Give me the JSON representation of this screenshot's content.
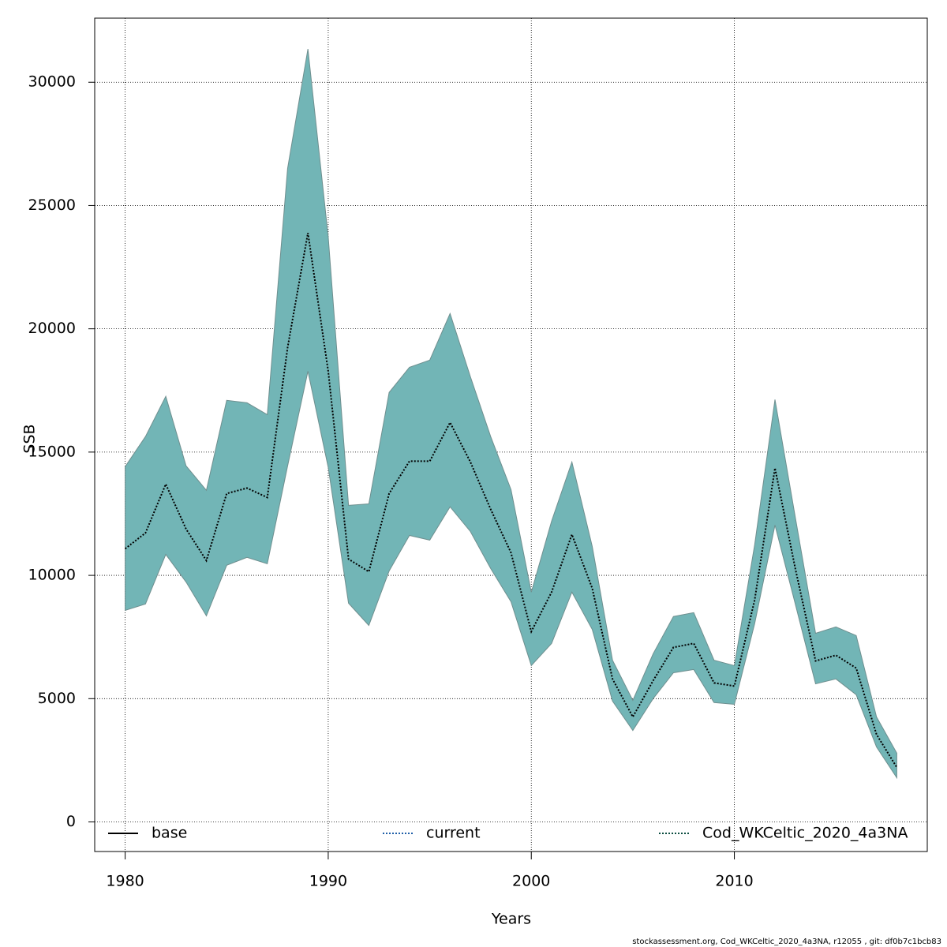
{
  "chart_data": {
    "type": "band-line",
    "xlabel": "Years",
    "ylabel": "SSB",
    "footnote": "stockassessment.org, Cod_WKCeltic_2020_4a3NA, r12055 , git: df0b7c1bcb83",
    "x": [
      1980,
      1981,
      1982,
      1983,
      1984,
      1985,
      1986,
      1987,
      1988,
      1989,
      1990,
      1991,
      1992,
      1993,
      1994,
      1995,
      1996,
      1997,
      1998,
      1999,
      2000,
      2001,
      2002,
      2003,
      2004,
      2005,
      2006,
      2007,
      2008,
      2009,
      2010,
      2011,
      2012,
      2013,
      2014,
      2015,
      2016,
      2017,
      2018
    ],
    "series": [
      {
        "name": "Cod_WKCeltic_2020_4a3NA",
        "color": "#000000",
        "band_color": "#72b5b6",
        "values": [
          11080,
          11720,
          13700,
          11880,
          10600,
          13320,
          13540,
          13160,
          19240,
          23890,
          18280,
          10660,
          10150,
          13320,
          14630,
          14630,
          16200,
          14600,
          12680,
          10920,
          7720,
          9320,
          11660,
          9480,
          5800,
          4260,
          5730,
          7080,
          7240,
          5640,
          5510,
          9000,
          14350,
          10280,
          6530,
          6760,
          6240,
          3550,
          2210
        ],
        "upper": [
          14410,
          15630,
          17260,
          14440,
          13450,
          17100,
          17000,
          16520,
          26510,
          31350,
          23730,
          12840,
          12900,
          17420,
          18440,
          18730,
          20620,
          18060,
          15630,
          13480,
          9320,
          12200,
          14600,
          11180,
          6560,
          4930,
          6820,
          8330,
          8490,
          6560,
          6340,
          11240,
          17130,
          12360,
          7650,
          7910,
          7560,
          4260,
          2790
        ],
        "lower": [
          8580,
          8840,
          10850,
          9730,
          8360,
          10410,
          10730,
          10470,
          14440,
          18280,
          14380,
          8870,
          7970,
          10180,
          11620,
          11430,
          12780,
          11780,
          10280,
          8930,
          6340,
          7240,
          9320,
          7810,
          4900,
          3710,
          5000,
          6050,
          6180,
          4840,
          4770,
          8040,
          12040,
          8840,
          5600,
          5800,
          5160,
          3040,
          1790
        ]
      }
    ],
    "legend": [
      {
        "name": "base",
        "color": "#000000",
        "dash": "solid"
      },
      {
        "name": "current",
        "color": "#1f5fa8",
        "dash": "dotted"
      },
      {
        "name": "Cod_WKCeltic_2020_4a3NA",
        "color": "#0b4d40",
        "dash": "dotted"
      }
    ],
    "xlim": [
      1978.5,
      2019.5
    ],
    "xticks": [
      1980,
      1990,
      2000,
      2010
    ],
    "ylim": [
      -1200,
      32600
    ],
    "yticks": [
      0,
      5000,
      10000,
      15000,
      20000,
      25000,
      30000
    ],
    "grid": true
  }
}
